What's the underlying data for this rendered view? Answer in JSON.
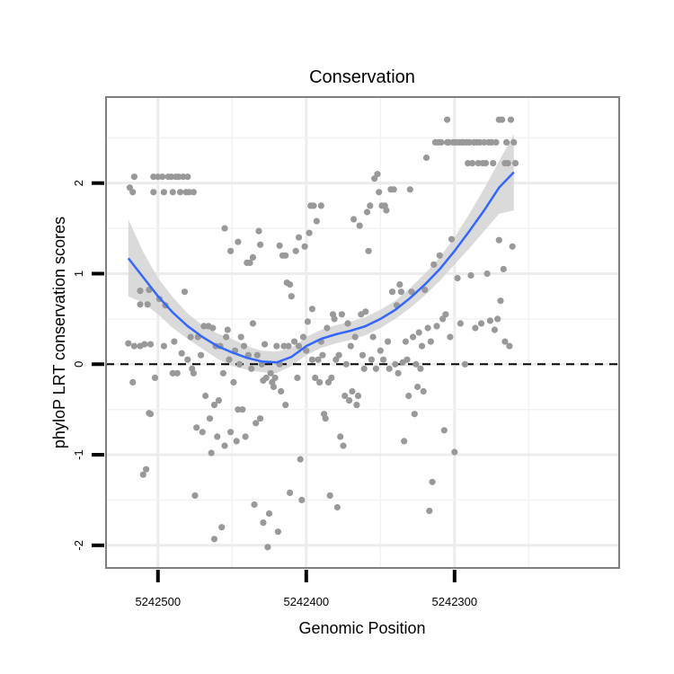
{
  "chart_data": {
    "type": "scatter",
    "title": "Conservation",
    "xlabel": "Genomic Position",
    "ylabel": "phyloP LRT conservation scores",
    "x_reversed": true,
    "xlim": [
      5242535,
      5242189
    ],
    "ylim": [
      -2.25,
      2.95
    ],
    "x_ticks": [
      5242500,
      5242400,
      5242300
    ],
    "x_tick_labels": [
      "5242500",
      "5242400",
      "5242300"
    ],
    "y_ticks": [
      -2,
      -1,
      0,
      1,
      2
    ],
    "y_tick_labels": [
      "-2",
      "-1",
      "0",
      "1",
      "2"
    ],
    "grid": true,
    "legend": "none",
    "reference_line": {
      "y": 0,
      "style": "dashed"
    },
    "colors": {
      "points": "#999999",
      "smooth": "#3366ff",
      "ribbon": "#d3d3d3",
      "panel_border": "#7f7f7f"
    },
    "points": [
      [
        5242519,
        1.95
      ],
      [
        5242517,
        1.9
      ],
      [
        5242516,
        2.07
      ],
      [
        5242517,
        -0.2
      ],
      [
        5242520,
        0.23
      ],
      [
        5242516,
        0.2
      ],
      [
        5242512,
        0.81
      ],
      [
        5242512,
        0.66
      ],
      [
        5242512,
        0.2
      ],
      [
        5242510,
        -1.22
      ],
      [
        5242509,
        0.22
      ],
      [
        5242508,
        -1.16
      ],
      [
        5242507,
        0.66
      ],
      [
        5242506,
        0.82
      ],
      [
        5242506,
        -0.54
      ],
      [
        5242505,
        -0.55
      ],
      [
        5242505,
        0.22
      ],
      [
        5242503,
        2.07
      ],
      [
        5242503,
        1.9
      ],
      [
        5242502,
        -0.15
      ],
      [
        5242500,
        2.07
      ],
      [
        5242499,
        0.72
      ],
      [
        5242497,
        2.07
      ],
      [
        5242496,
        1.9
      ],
      [
        5242496,
        0.2
      ],
      [
        5242495,
        0.65
      ],
      [
        5242493,
        2.07
      ],
      [
        5242491,
        2.07
      ],
      [
        5242490,
        1.9
      ],
      [
        5242490,
        -0.1
      ],
      [
        5242489,
        0.25
      ],
      [
        5242488,
        2.07
      ],
      [
        5242487,
        -0.1
      ],
      [
        5242486,
        2.07
      ],
      [
        5242485,
        1.9
      ],
      [
        5242484,
        0.12
      ],
      [
        5242483,
        2.07
      ],
      [
        5242482,
        0.8
      ],
      [
        5242481,
        1.9
      ],
      [
        5242480,
        2.07
      ],
      [
        5242480,
        0.05
      ],
      [
        5242479,
        1.9
      ],
      [
        5242478,
        0.3
      ],
      [
        5242477,
        -0.05
      ],
      [
        5242476,
        1.9
      ],
      [
        5242476,
        -0.1
      ],
      [
        5242475,
        -1.45
      ],
      [
        5242474,
        -0.7
      ],
      [
        5242473,
        0.3
      ],
      [
        5242471,
        0.1
      ],
      [
        5242470,
        -0.75
      ],
      [
        5242469,
        0.42
      ],
      [
        5242468,
        -0.35
      ],
      [
        5242466,
        0.42
      ],
      [
        5242465,
        -0.6
      ],
      [
        5242464,
        -0.98
      ],
      [
        5242463,
        0.4
      ],
      [
        5242462,
        -0.45
      ],
      [
        5242462,
        -1.93
      ],
      [
        5242461,
        0.2
      ],
      [
        5242460,
        -0.8
      ],
      [
        5242459,
        -0.4
      ],
      [
        5242458,
        0.2
      ],
      [
        5242457,
        -1.8
      ],
      [
        5242456,
        -0.1
      ],
      [
        5242455,
        1.5
      ],
      [
        5242455,
        -0.9
      ],
      [
        5242454,
        0.3
      ],
      [
        5242453,
        0.38
      ],
      [
        5242452,
        0.05
      ],
      [
        5242451,
        -0.75
      ],
      [
        5242451,
        1.25
      ],
      [
        5242449,
        -0.2
      ],
      [
        5242448,
        0.15
      ],
      [
        5242447,
        -0.85
      ],
      [
        5242446,
        1.35
      ],
      [
        5242446,
        -0.5
      ],
      [
        5242445,
        0.0
      ],
      [
        5242444,
        0.3
      ],
      [
        5242443,
        -0.5
      ],
      [
        5242442,
        0.2
      ],
      [
        5242441,
        -0.8
      ],
      [
        5242440,
        1.12
      ],
      [
        5242439,
        0.1
      ],
      [
        5242438,
        1.12
      ],
      [
        5242437,
        -0.05
      ],
      [
        5242436,
        1.18
      ],
      [
        5242436,
        0.45
      ],
      [
        5242435,
        -1.55
      ],
      [
        5242434,
        -0.65
      ],
      [
        5242433,
        0.1
      ],
      [
        5242432,
        1.47
      ],
      [
        5242431,
        1.32
      ],
      [
        5242431,
        -0.6
      ],
      [
        5242430,
        0.0
      ],
      [
        5242429,
        -1.75
      ],
      [
        5242429,
        -0.18
      ],
      [
        5242428,
        0.22
      ],
      [
        5242427,
        -0.15
      ],
      [
        5242426,
        -2.02
      ],
      [
        5242425,
        -1.65
      ],
      [
        5242424,
        -0.1
      ],
      [
        5242423,
        -0.2
      ],
      [
        5242422,
        -0.25
      ],
      [
        5242421,
        -0.15
      ],
      [
        5242420,
        0.2
      ],
      [
        5242419,
        -1.85
      ],
      [
        5242418,
        1.31
      ],
      [
        5242418,
        0.0
      ],
      [
        5242417,
        -0.3
      ],
      [
        5242416,
        1.2
      ],
      [
        5242415,
        0.2
      ],
      [
        5242414,
        1.2
      ],
      [
        5242414,
        -0.45
      ],
      [
        5242413,
        0.9
      ],
      [
        5242412,
        0.2
      ],
      [
        5242411,
        0.88
      ],
      [
        5242411,
        -1.42
      ],
      [
        5242410,
        0.75
      ],
      [
        5242408,
        0.25
      ],
      [
        5242407,
        1.25
      ],
      [
        5242406,
        -0.15
      ],
      [
        5242405,
        1.4
      ],
      [
        5242405,
        0.2
      ],
      [
        5242404,
        -1.05
      ],
      [
        5242403,
        -1.5
      ],
      [
        5242402,
        0.3
      ],
      [
        5242401,
        1.3
      ],
      [
        5242400,
        0.15
      ],
      [
        5242399,
        0.47
      ],
      [
        5242398,
        1.45
      ],
      [
        5242397,
        1.75
      ],
      [
        5242396,
        0.61
      ],
      [
        5242396,
        0.05
      ],
      [
        5242395,
        1.75
      ],
      [
        5242394,
        -0.15
      ],
      [
        5242393,
        1.58
      ],
      [
        5242392,
        0.05
      ],
      [
        5242391,
        -0.2
      ],
      [
        5242390,
        1.75
      ],
      [
        5242390,
        0.25
      ],
      [
        5242389,
        0.1
      ],
      [
        5242388,
        -0.55
      ],
      [
        5242387,
        -0.6
      ],
      [
        5242386,
        0.4
      ],
      [
        5242385,
        -0.2
      ],
      [
        5242384,
        -1.45
      ],
      [
        5242383,
        -0.15
      ],
      [
        5242382,
        0.55
      ],
      [
        5242381,
        0.5
      ],
      [
        5242380,
        0.05
      ],
      [
        5242379,
        -1.58
      ],
      [
        5242378,
        0.1
      ],
      [
        5242377,
        -0.8
      ],
      [
        5242376,
        0.55
      ],
      [
        5242375,
        -0.9
      ],
      [
        5242374,
        -0.35
      ],
      [
        5242373,
        0.0
      ],
      [
        5242372,
        0.45
      ],
      [
        5242371,
        -0.4
      ],
      [
        5242370,
        0.2
      ],
      [
        5242369,
        -0.3
      ],
      [
        5242368,
        1.6
      ],
      [
        5242367,
        0.3
      ],
      [
        5242366,
        -0.45
      ],
      [
        5242365,
        -0.35
      ],
      [
        5242364,
        1.53
      ],
      [
        5242363,
        0.55
      ],
      [
        5242362,
        0.1
      ],
      [
        5242361,
        -0.05
      ],
      [
        5242360,
        0.58
      ],
      [
        5242359,
        1.68
      ],
      [
        5242358,
        1.25
      ],
      [
        5242357,
        1.75
      ],
      [
        5242356,
        0.05
      ],
      [
        5242355,
        0.3
      ],
      [
        5242354,
        2.05
      ],
      [
        5242353,
        -0.05
      ],
      [
        5242352,
        2.1
      ],
      [
        5242351,
        1.9
      ],
      [
        5242350,
        0.15
      ],
      [
        5242349,
        1.75
      ],
      [
        5242348,
        0.05
      ],
      [
        5242347,
        1.75
      ],
      [
        5242346,
        1.7
      ],
      [
        5242345,
        0.25
      ],
      [
        5242344,
        -0.05
      ],
      [
        5242343,
        1.93
      ],
      [
        5242342,
        0.8
      ],
      [
        5242341,
        1.93
      ],
      [
        5242340,
        0.0
      ],
      [
        5242339,
        0.65
      ],
      [
        5242338,
        -0.1
      ],
      [
        5242337,
        0.88
      ],
      [
        5242336,
        0.8
      ],
      [
        5242335,
        0.02
      ],
      [
        5242334,
        -0.85
      ],
      [
        5242333,
        0.25
      ],
      [
        5242332,
        0.05
      ],
      [
        5242331,
        -0.35
      ],
      [
        5242330,
        1.93
      ],
      [
        5242329,
        0.8
      ],
      [
        5242328,
        0.3
      ],
      [
        5242327,
        -0.55
      ],
      [
        5242326,
        0.0
      ],
      [
        5242325,
        -0.25
      ],
      [
        5242324,
        0.35
      ],
      [
        5242323,
        -0.05
      ],
      [
        5242322,
        0.2
      ],
      [
        5242321,
        -0.3
      ],
      [
        5242320,
        0.82
      ],
      [
        5242319,
        2.28
      ],
      [
        5242318,
        0.4
      ],
      [
        5242317,
        -1.62
      ],
      [
        5242316,
        0.25
      ],
      [
        5242315,
        -1.3
      ],
      [
        5242314,
        1.1
      ],
      [
        5242313,
        2.45
      ],
      [
        5242312,
        0.42
      ],
      [
        5242311,
        2.45
      ],
      [
        5242310,
        1.2
      ],
      [
        5242309,
        2.45
      ],
      [
        5242308,
        0.5
      ],
      [
        5242307,
        -0.73
      ],
      [
        5242306,
        0.55
      ],
      [
        5242305,
        2.7
      ],
      [
        5242305,
        2.45
      ],
      [
        5242304,
        2.45
      ],
      [
        5242303,
        0.3
      ],
      [
        5242302,
        1.38
      ],
      [
        5242301,
        2.45
      ],
      [
        5242300,
        -0.97
      ],
      [
        5242299,
        2.45
      ],
      [
        5242298,
        0.95
      ],
      [
        5242297,
        2.45
      ],
      [
        5242296,
        0.45
      ],
      [
        5242295,
        2.45
      ],
      [
        5242294,
        2.45
      ],
      [
        5242293,
        0.0
      ],
      [
        5242292,
        2.45
      ],
      [
        5242291,
        2.22
      ],
      [
        5242290,
        2.45
      ],
      [
        5242289,
        0.98
      ],
      [
        5242288,
        2.22
      ],
      [
        5242287,
        2.45
      ],
      [
        5242286,
        0.4
      ],
      [
        5242285,
        2.45
      ],
      [
        5242284,
        2.22
      ],
      [
        5242283,
        2.45
      ],
      [
        5242282,
        0.45
      ],
      [
        5242281,
        2.22
      ],
      [
        5242280,
        2.45
      ],
      [
        5242279,
        2.22
      ],
      [
        5242278,
        1.0
      ],
      [
        5242277,
        2.45
      ],
      [
        5242276,
        0.48
      ],
      [
        5242275,
        2.45
      ],
      [
        5242274,
        2.22
      ],
      [
        5242273,
        0.38
      ],
      [
        5242272,
        2.45
      ],
      [
        5242271,
        0.5
      ],
      [
        5242270,
        1.37
      ],
      [
        5242270,
        2.7
      ],
      [
        5242269,
        0.7
      ],
      [
        5242268,
        2.7
      ],
      [
        5242267,
        1.05
      ],
      [
        5242266,
        2.22
      ],
      [
        5242266,
        0.25
      ],
      [
        5242265,
        2.45
      ],
      [
        5242264,
        2.22
      ],
      [
        5242263,
        0.2
      ],
      [
        5242262,
        2.7
      ],
      [
        5242261,
        1.3
      ],
      [
        5242260,
        2.45
      ],
      [
        5242259,
        2.22
      ]
    ],
    "smooth": [
      [
        5242520,
        1.17
      ],
      [
        5242510,
        0.96
      ],
      [
        5242500,
        0.75
      ],
      [
        5242490,
        0.57
      ],
      [
        5242480,
        0.42
      ],
      [
        5242470,
        0.3
      ],
      [
        5242460,
        0.2
      ],
      [
        5242450,
        0.13
      ],
      [
        5242440,
        0.07
      ],
      [
        5242430,
        0.03
      ],
      [
        5242420,
        0.02
      ],
      [
        5242410,
        0.08
      ],
      [
        5242400,
        0.2
      ],
      [
        5242390,
        0.28
      ],
      [
        5242380,
        0.33
      ],
      [
        5242370,
        0.37
      ],
      [
        5242360,
        0.42
      ],
      [
        5242350,
        0.5
      ],
      [
        5242340,
        0.6
      ],
      [
        5242330,
        0.73
      ],
      [
        5242320,
        0.88
      ],
      [
        5242310,
        1.05
      ],
      [
        5242300,
        1.25
      ],
      [
        5242290,
        1.47
      ],
      [
        5242280,
        1.7
      ],
      [
        5242270,
        1.95
      ],
      [
        5242260,
        2.12
      ]
    ],
    "ribbon": [
      [
        5242520,
        0.75,
        1.6
      ],
      [
        5242510,
        0.68,
        1.24
      ],
      [
        5242500,
        0.55,
        0.95
      ],
      [
        5242490,
        0.4,
        0.74
      ],
      [
        5242480,
        0.28,
        0.56
      ],
      [
        5242470,
        0.17,
        0.43
      ],
      [
        5242460,
        0.06,
        0.34
      ],
      [
        5242450,
        -0.02,
        0.28
      ],
      [
        5242440,
        -0.06,
        0.2
      ],
      [
        5242430,
        -0.09,
        0.15
      ],
      [
        5242420,
        -0.1,
        0.14
      ],
      [
        5242410,
        -0.02,
        0.18
      ],
      [
        5242400,
        0.1,
        0.3
      ],
      [
        5242390,
        0.18,
        0.38
      ],
      [
        5242380,
        0.23,
        0.43
      ],
      [
        5242370,
        0.27,
        0.47
      ],
      [
        5242360,
        0.32,
        0.52
      ],
      [
        5242350,
        0.4,
        0.6
      ],
      [
        5242340,
        0.5,
        0.7
      ],
      [
        5242330,
        0.62,
        0.84
      ],
      [
        5242320,
        0.76,
        1.0
      ],
      [
        5242310,
        0.92,
        1.18
      ],
      [
        5242300,
        1.1,
        1.4
      ],
      [
        5242290,
        1.28,
        1.66
      ],
      [
        5242280,
        1.47,
        1.94
      ],
      [
        5242270,
        1.66,
        2.24
      ],
      [
        5242260,
        1.7,
        2.54
      ]
    ]
  }
}
